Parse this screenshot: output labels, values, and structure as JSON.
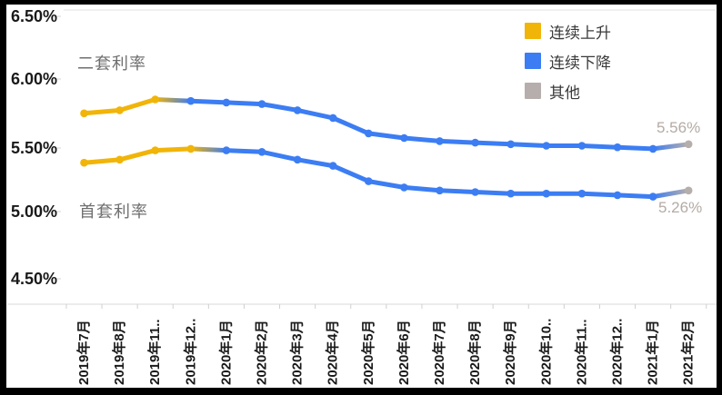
{
  "chart": {
    "y_axis_labels": [
      "6.50%",
      "6.00%",
      "5.50%",
      "5.00%",
      "4.50%"
    ],
    "annotations": {
      "second_home": "二套利率",
      "first_home": "首套利率"
    },
    "end_labels": {
      "second_home": "5.56%",
      "first_home": "5.26%"
    },
    "legend": [
      {
        "key": "rising",
        "label": "连续上升",
        "color": "#F1B408"
      },
      {
        "key": "falling",
        "label": "连续下降",
        "color": "#3C7DF3"
      },
      {
        "key": "other",
        "label": "其他",
        "color": "#B6AEAC"
      }
    ]
  },
  "chart_data": {
    "type": "line",
    "title": "",
    "xlabel": "",
    "ylabel": "",
    "ylim": [
      4.5,
      6.5
    ],
    "y_tick_labels": [
      "6.50%",
      "6.00%",
      "5.50%",
      "5.00%",
      "4.50%"
    ],
    "grid": false,
    "legend_position": "top-right",
    "legend_entries": [
      "连续上升",
      "连续下降",
      "其他"
    ],
    "colors": {
      "rising": "#F1B408",
      "falling": "#3C7DF3",
      "other": "#B6AEAC"
    },
    "categories": [
      "2019年7月",
      "2019年8月",
      "2019年11..",
      "2019年12..",
      "2020年1月",
      "2020年2月",
      "2020年3月",
      "2020年4月",
      "2020年5月",
      "2020年6月",
      "2020年7月",
      "2020年8月",
      "2020年9月",
      "2020年10..",
      "2020年11..",
      "2020年12..",
      "2021年1月",
      "2021年2月"
    ],
    "series": [
      {
        "name": "二套利率",
        "values": [
          5.76,
          5.78,
          5.85,
          5.84,
          5.83,
          5.82,
          5.78,
          5.73,
          5.63,
          5.6,
          5.58,
          5.57,
          5.56,
          5.55,
          5.55,
          5.54,
          5.53,
          5.56
        ],
        "rising_through_index": 2,
        "other_from_index": 17,
        "end_label": "5.56%"
      },
      {
        "name": "首套利率",
        "values": [
          5.44,
          5.46,
          5.52,
          5.53,
          5.52,
          5.51,
          5.46,
          5.42,
          5.32,
          5.28,
          5.26,
          5.25,
          5.24,
          5.24,
          5.24,
          5.23,
          5.22,
          5.26
        ],
        "rising_through_index": 3,
        "other_from_index": 17,
        "end_label": "5.26%"
      }
    ]
  }
}
